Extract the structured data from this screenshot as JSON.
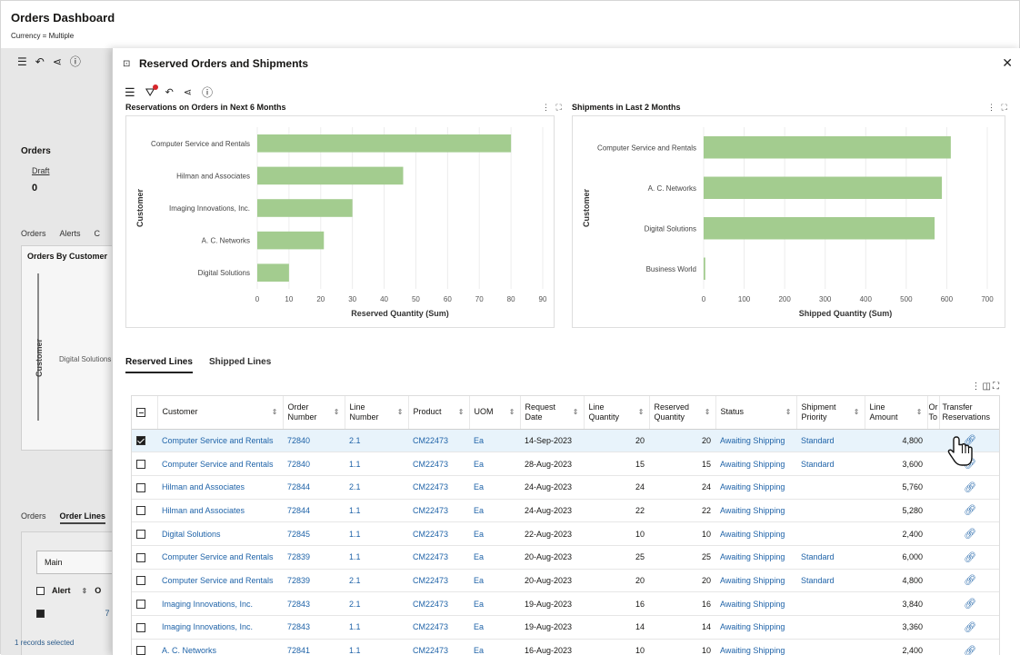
{
  "app": {
    "title": "Orders Dashboard",
    "currency": "Currency = Multiple"
  },
  "background": {
    "orders_title": "Orders",
    "draft_label": "Draft",
    "draft_count": "0",
    "tabs_top": [
      "Orders",
      "Alerts",
      "C"
    ],
    "card_title": "Orders By Customer",
    "card_ylabel": "Customer",
    "card_category": "Digital Solutions",
    "tabs_bottom": [
      "Orders",
      "Order Lines"
    ],
    "view_select": "Main",
    "grid_header_alert": "Alert",
    "grid_header_o": "O",
    "grid_row_value": "7",
    "selected_text": "1 records selected"
  },
  "drawer": {
    "title": "Reserved Orders and Shipments"
  },
  "chart_data": [
    {
      "type": "bar",
      "orientation": "horizontal",
      "title": "Reservations on Orders in Next 6 Months",
      "categories": [
        "Computer Service and Rentals",
        "Hilman and Associates",
        "Imaging Innovations, Inc.",
        "A. C. Networks",
        "Digital Solutions"
      ],
      "values": [
        80,
        46,
        30,
        21,
        10
      ],
      "xlabel": "Reserved Quantity (Sum)",
      "ylabel": "Customer",
      "xlim": [
        0,
        90
      ],
      "xticks": [
        0,
        10,
        20,
        30,
        40,
        50,
        60,
        70,
        80,
        90
      ],
      "grid": true,
      "color": "#a3cc8f"
    },
    {
      "type": "bar",
      "orientation": "horizontal",
      "title": "Shipments in Last 2 Months",
      "categories": [
        "Computer Service and Rentals",
        "A. C. Networks",
        "Digital Solutions",
        "Business World"
      ],
      "values": [
        610,
        588,
        570,
        4
      ],
      "xlabel": "Shipped Quantity (Sum)",
      "ylabel": "Customer",
      "xlim": [
        0,
        700
      ],
      "xticks": [
        0,
        100,
        200,
        300,
        400,
        500,
        600,
        700
      ],
      "grid": true,
      "color": "#a3cc8f"
    }
  ],
  "lines_tabs": [
    "Reserved Lines",
    "Shipped Lines"
  ],
  "table": {
    "columns": [
      {
        "label": "Customer",
        "sortable": true
      },
      {
        "label": "Order Number",
        "sortable": true
      },
      {
        "label": "Line Number",
        "sortable": true
      },
      {
        "label": "Product",
        "sortable": true
      },
      {
        "label": "UOM",
        "sortable": true
      },
      {
        "label": "Request Date",
        "sortable": true
      },
      {
        "label": "Line Quantity",
        "sortable": true
      },
      {
        "label": "Reserved Quantity",
        "sortable": true
      },
      {
        "label": "Status",
        "sortable": true
      },
      {
        "label": "Shipment Priority",
        "sortable": true
      },
      {
        "label": "Line Amount",
        "sortable": true
      },
      {
        "label": "Or To",
        "sortable": false
      },
      {
        "label": "Transfer Reservations",
        "sortable": false
      }
    ],
    "rows": [
      {
        "customer": "Computer Service and Rentals",
        "order": "72840",
        "line": "2.1",
        "product": "CM22473",
        "uom": "Ea",
        "date": "14-Sep-2023",
        "line_qty": "20",
        "reserved_qty": "20",
        "status": "Awaiting Shipping",
        "priority": "Standard",
        "amount": "4,800",
        "selected": true
      },
      {
        "customer": "Computer Service and Rentals",
        "order": "72840",
        "line": "1.1",
        "product": "CM22473",
        "uom": "Ea",
        "date": "28-Aug-2023",
        "line_qty": "15",
        "reserved_qty": "15",
        "status": "Awaiting Shipping",
        "priority": "Standard",
        "amount": "3,600",
        "selected": false
      },
      {
        "customer": "Hilman and Associates",
        "order": "72844",
        "line": "2.1",
        "product": "CM22473",
        "uom": "Ea",
        "date": "24-Aug-2023",
        "line_qty": "24",
        "reserved_qty": "24",
        "status": "Awaiting Shipping",
        "priority": "",
        "amount": "5,760",
        "selected": false
      },
      {
        "customer": "Hilman and Associates",
        "order": "72844",
        "line": "1.1",
        "product": "CM22473",
        "uom": "Ea",
        "date": "24-Aug-2023",
        "line_qty": "22",
        "reserved_qty": "22",
        "status": "Awaiting Shipping",
        "priority": "",
        "amount": "5,280",
        "selected": false
      },
      {
        "customer": "Digital Solutions",
        "order": "72845",
        "line": "1.1",
        "product": "CM22473",
        "uom": "Ea",
        "date": "22-Aug-2023",
        "line_qty": "10",
        "reserved_qty": "10",
        "status": "Awaiting Shipping",
        "priority": "",
        "amount": "2,400",
        "selected": false
      },
      {
        "customer": "Computer Service and Rentals",
        "order": "72839",
        "line": "1.1",
        "product": "CM22473",
        "uom": "Ea",
        "date": "20-Aug-2023",
        "line_qty": "25",
        "reserved_qty": "25",
        "status": "Awaiting Shipping",
        "priority": "Standard",
        "amount": "6,000",
        "selected": false
      },
      {
        "customer": "Computer Service and Rentals",
        "order": "72839",
        "line": "2.1",
        "product": "CM22473",
        "uom": "Ea",
        "date": "20-Aug-2023",
        "line_qty": "20",
        "reserved_qty": "20",
        "status": "Awaiting Shipping",
        "priority": "Standard",
        "amount": "4,800",
        "selected": false
      },
      {
        "customer": "Imaging Innovations, Inc.",
        "order": "72843",
        "line": "2.1",
        "product": "CM22473",
        "uom": "Ea",
        "date": "19-Aug-2023",
        "line_qty": "16",
        "reserved_qty": "16",
        "status": "Awaiting Shipping",
        "priority": "",
        "amount": "3,840",
        "selected": false
      },
      {
        "customer": "Imaging Innovations, Inc.",
        "order": "72843",
        "line": "1.1",
        "product": "CM22473",
        "uom": "Ea",
        "date": "19-Aug-2023",
        "line_qty": "14",
        "reserved_qty": "14",
        "status": "Awaiting Shipping",
        "priority": "",
        "amount": "3,360",
        "selected": false
      },
      {
        "customer": "A. C. Networks",
        "order": "72841",
        "line": "1.1",
        "product": "CM22473",
        "uom": "Ea",
        "date": "16-Aug-2023",
        "line_qty": "10",
        "reserved_qty": "10",
        "status": "Awaiting Shipping",
        "priority": "",
        "amount": "2,400",
        "selected": false
      }
    ]
  },
  "icons": {
    "menu": "hamburger-icon",
    "filter": "filter-icon",
    "undo": "undo-icon",
    "share": "share-icon",
    "info": "info-icon",
    "transfer": "link-icon",
    "close": "close-icon"
  }
}
